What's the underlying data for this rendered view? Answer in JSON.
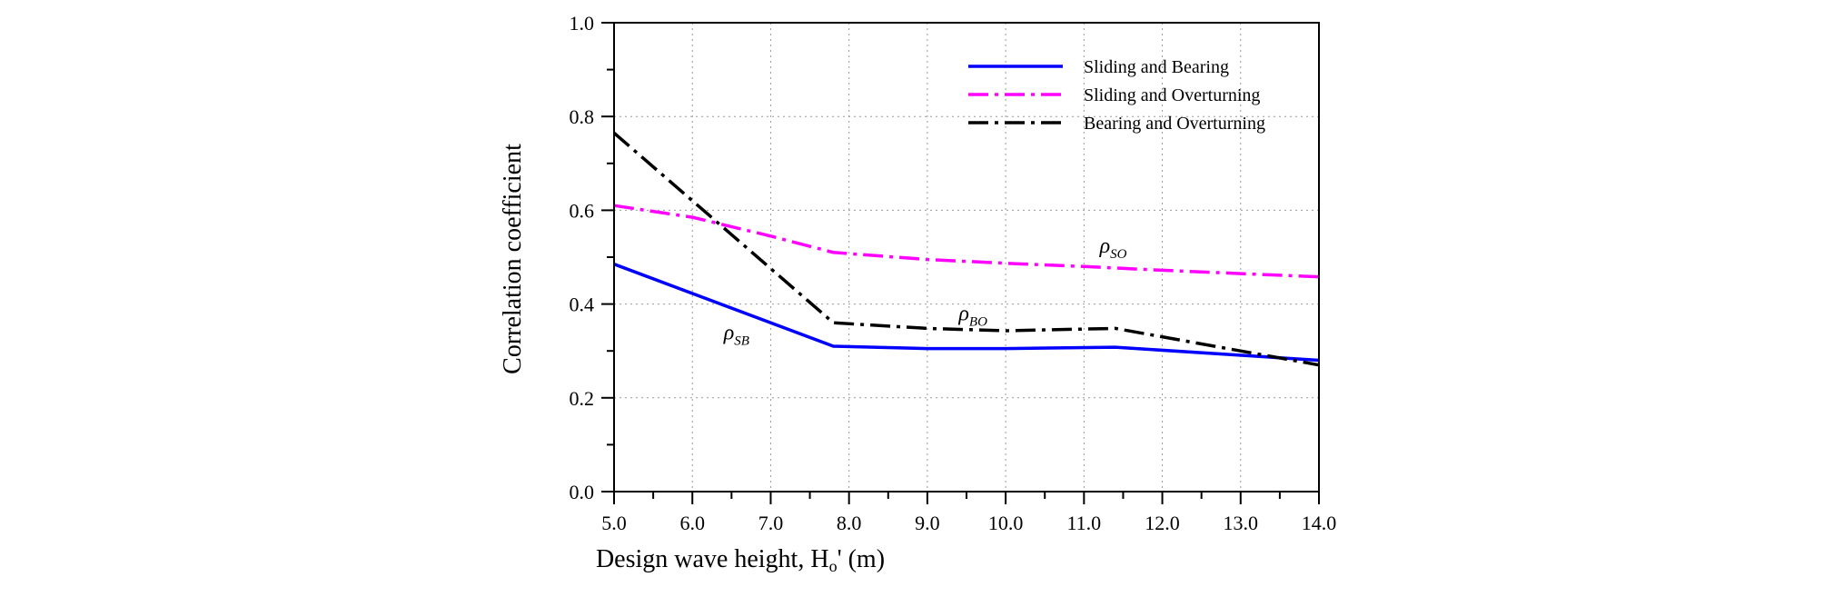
{
  "chart_data": {
    "type": "line",
    "xlabel": "Design wave height,  H",
    "xlabel_sub": "o",
    "xlabel_suffix": "' (m)",
    "ylabel": "Correlation coefficient",
    "xlim": [
      5.0,
      14.0
    ],
    "ylim": [
      0.0,
      1.0
    ],
    "x_ticks": [
      "5.0",
      "6.0",
      "7.0",
      "8.0",
      "9.0",
      "10.0",
      "11.0",
      "12.0",
      "13.0",
      "14.0"
    ],
    "y_ticks": [
      "0.0",
      "0.2",
      "0.4",
      "0.6",
      "0.8",
      "1.0"
    ],
    "grid": true,
    "legend_position": "top-right",
    "series": [
      {
        "name": "Sliding and Bearing",
        "color": "#0000ff",
        "dash": "solid",
        "x": [
          5.0,
          7.8,
          9.0,
          10.0,
          11.4,
          14.0
        ],
        "y": [
          0.485,
          0.31,
          0.305,
          0.305,
          0.308,
          0.28
        ]
      },
      {
        "name": "Sliding and Overturning",
        "color": "#ff00ff",
        "dash": "dashdot",
        "x": [
          5.0,
          6.0,
          7.0,
          7.8,
          9.0,
          10.0,
          11.0,
          12.0,
          13.0,
          14.0
        ],
        "y": [
          0.61,
          0.585,
          0.545,
          0.51,
          0.495,
          0.487,
          0.48,
          0.472,
          0.465,
          0.458
        ]
      },
      {
        "name": "Bearing and Overturning",
        "color": "#000000",
        "dash": "dashdot",
        "x": [
          5.0,
          7.8,
          9.0,
          10.0,
          11.4,
          14.0
        ],
        "y": [
          0.765,
          0.36,
          0.348,
          0.343,
          0.348,
          0.27
        ]
      }
    ],
    "annotations": [
      {
        "symbol": "ρ",
        "sub": "SO",
        "x": 11.2,
        "y": 0.51
      },
      {
        "symbol": "ρ",
        "sub": "BO",
        "x": 9.4,
        "y": 0.365
      },
      {
        "symbol": "ρ",
        "sub": "SB",
        "x": 6.4,
        "y": 0.325
      }
    ]
  }
}
